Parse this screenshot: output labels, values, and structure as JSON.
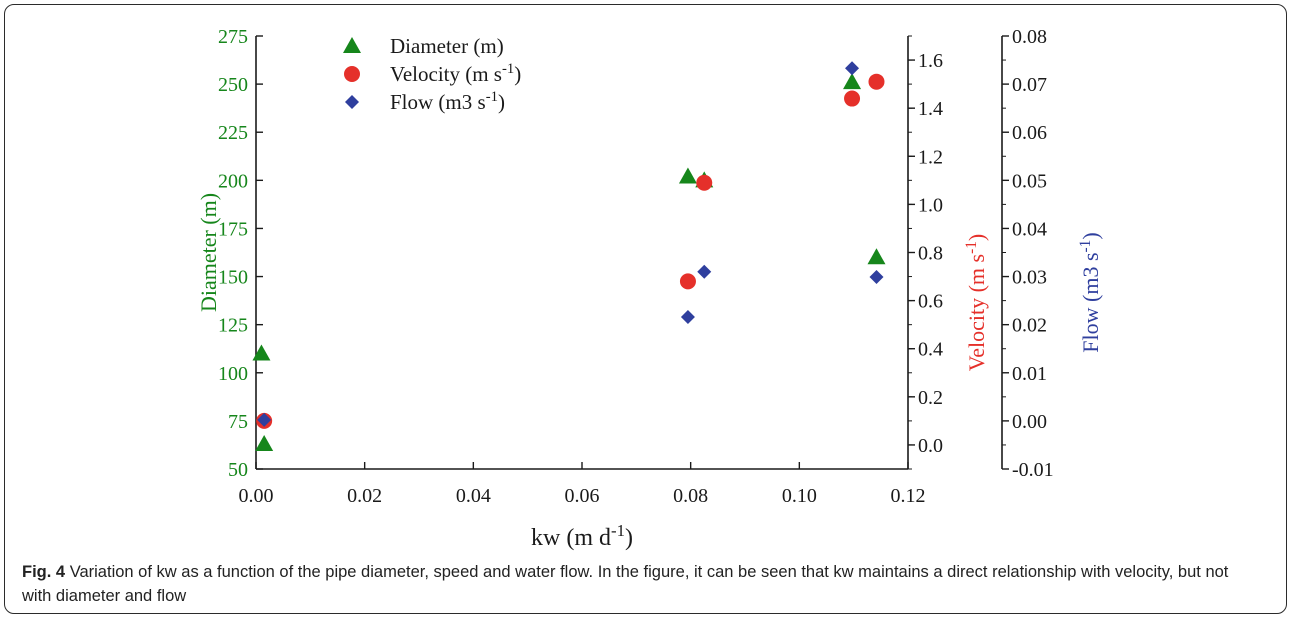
{
  "colors": {
    "diameter": "#16861b",
    "velocity": "#e5302a",
    "flow": "#2f3f9e",
    "axis": "#1a1a1a"
  },
  "caption": {
    "label": "Fig. 4",
    "text": "Variation of kw as a function of the pipe diameter, speed and water flow. In the figure, it can be seen that kw maintains a direct relationship with velocity, but not with diameter and flow"
  },
  "chart_data": {
    "type": "scatter",
    "xlabel": "kw (m d-1)",
    "xlim": [
      0.0,
      0.12
    ],
    "xticks": [
      "0.00",
      "0.02",
      "0.04",
      "0.06",
      "0.08",
      "0.10",
      "0.12"
    ],
    "axes": {
      "diameter": {
        "label": "Diameter (m)",
        "lim": [
          50,
          275
        ],
        "ticks": [
          "50",
          "75",
          "100",
          "125",
          "150",
          "175",
          "200",
          "225",
          "250",
          "275"
        ]
      },
      "velocity": {
        "label": "Velocity (m s-1)",
        "lim": [
          -0.1,
          1.7
        ],
        "ticks": [
          "0.0",
          "0.2",
          "0.4",
          "0.6",
          "0.8",
          "1.0",
          "1.2",
          "1.4",
          "1.6"
        ]
      },
      "flow": {
        "label": "Flow (m3 s-1)",
        "lim": [
          -0.01,
          0.08
        ],
        "ticks": [
          "-0.01",
          "0.00",
          "0.01",
          "0.02",
          "0.03",
          "0.04",
          "0.05",
          "0.06",
          "0.07",
          "0.08"
        ]
      }
    },
    "legend": {
      "position": "top-left",
      "entries": [
        "Diameter (m)",
        "Velocity (m s-1)",
        "Flow (m3 s-1)"
      ]
    },
    "series": [
      {
        "name": "Diameter (m)",
        "axis": "diameter",
        "marker": "triangle",
        "x": [
          0.001,
          0.0015,
          0.0795,
          0.0825,
          0.1097,
          0.1142
        ],
        "y": [
          110,
          63,
          202,
          200,
          251,
          160
        ]
      },
      {
        "name": "Velocity (m s-1)",
        "axis": "velocity",
        "marker": "circle",
        "x": [
          0.0015,
          0.0795,
          0.0825,
          0.1097,
          0.1142
        ],
        "y": [
          0.1,
          0.68,
          1.09,
          1.44,
          1.51
        ]
      },
      {
        "name": "Flow (m3 s-1)",
        "axis": "flow",
        "marker": "diamond",
        "x": [
          0.0015,
          0.0795,
          0.0825,
          0.1097,
          0.1142
        ],
        "y": [
          0.0002,
          0.0216,
          0.031,
          0.0733,
          0.0299
        ]
      }
    ]
  }
}
